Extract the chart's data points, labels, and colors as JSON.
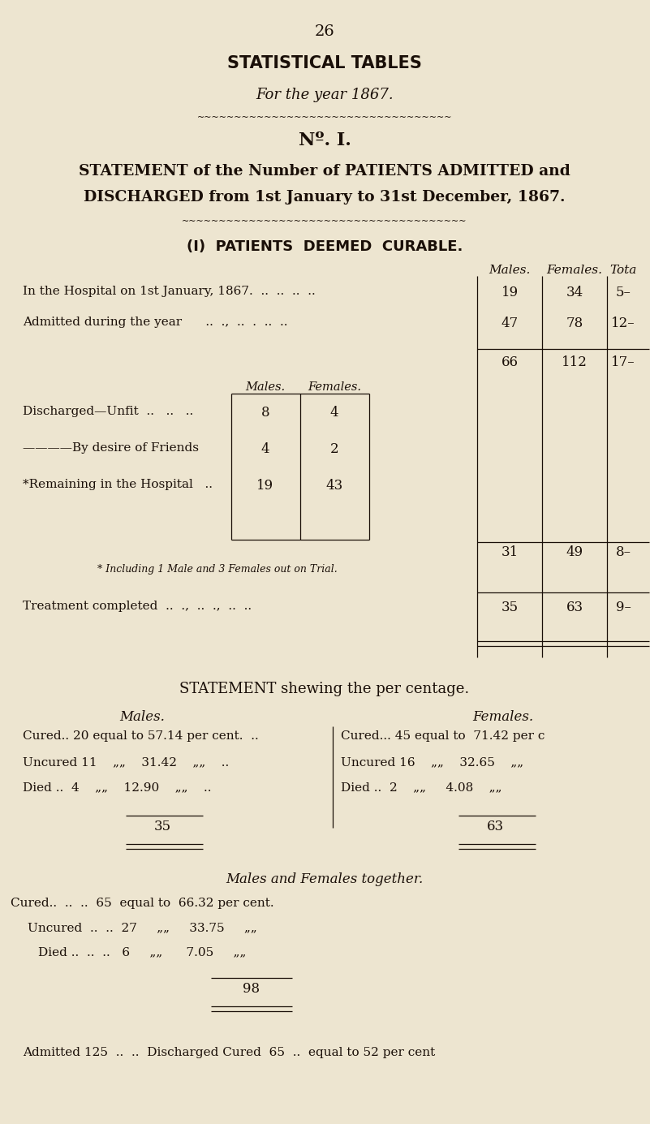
{
  "bg_color": "#ede5d0",
  "text_color": "#1a0f08",
  "page_number": "26",
  "title1": "STATISTICAL TABLES",
  "title2": "For the year 1867.",
  "no_I": "Nº. I.",
  "statement_header1": "STATEMENT of the Number of PATIENTS ADMITTED and",
  "statement_header2": "DISCHARGED from 1st January to 31st December, 1867.",
  "section_title": "(I)  PATIENTS  DEEMED  CURABLE.",
  "col_headers": [
    "Males.",
    "Females.",
    "Tota"
  ],
  "row1_label": "In the Hospital on 1st January, 1867.  ..  ..  ..  ..",
  "row1_vals": [
    "19",
    "34",
    "5–"
  ],
  "row2_label": "Admitted during the year      ..  .,  ..  .  ..  ..",
  "row2_vals": [
    "47",
    "78",
    "12–"
  ],
  "sum_vals": [
    "66",
    "112",
    "17–"
  ],
  "inner_col_headers": [
    "Males.",
    "Females."
  ],
  "inner_row1_label": "Discharged—Unfit  ..   ..   ..",
  "inner_row1_vals": [
    "8",
    "4"
  ],
  "inner_row2_label": "————By desire of Friends",
  "inner_row2_vals": [
    "4",
    "2"
  ],
  "inner_row3_label": "*Remaining in the Hospital   ..",
  "inner_row3_vals": [
    "19",
    "43"
  ],
  "inner_sum_vals": [
    "31",
    "49",
    "8–"
  ],
  "footnote": "* Including 1 Male and 3 Females out on Trial.",
  "treatment_label": "Treatment completed  ..  .,  ..  .,  ..  ..",
  "treatment_vals": [
    "35",
    "63",
    "9–"
  ],
  "stmt2_title": "STATEMENT shewing the per centage.",
  "males_header": "Males.",
  "females_header": "Females.",
  "m_cured": "Cured.. 20 equal to 57.14 per cent.  ..",
  "m_uncured": "Uncured 11    „„    31.42    „„    ..",
  "m_died": "Died ..  4    „„    12.90    „„    ..",
  "m_total": "35",
  "f_cured": "Cured... 45 equal to  71.42 per c",
  "f_uncured": "Uncured 16    „„    32.65    „„",
  "f_died": "Died ..  2    „„     4.08    „„",
  "f_total": "63",
  "together_header": "Males and Females together.",
  "t_cured": "Cured..  ..  ..  65  equal to  66.32 per cent.",
  "t_uncured": "Uncured  ..  ..  27     „„     33.75     „„",
  "t_died": "Died ..  ..  ..   6     „„      7.05     „„",
  "t_total": "98",
  "bottom_line": "Admitted 125  ..  ..  Discharged Cured  65  ..  equal to 52 per cent"
}
